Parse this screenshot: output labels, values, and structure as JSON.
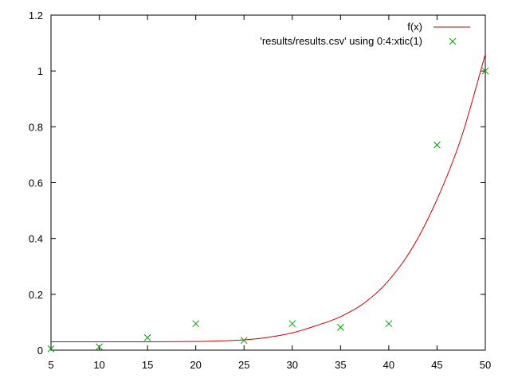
{
  "chart_data": {
    "type": "scatter",
    "title": "",
    "xlabel": "",
    "ylabel": "",
    "xlim": [
      5,
      50
    ],
    "ylim": [
      0,
      1.2
    ],
    "grid": false,
    "legend_position": "top-right",
    "x_ticks": [
      "5",
      "10",
      "15",
      "20",
      "25",
      "30",
      "35",
      "40",
      "45",
      "50"
    ],
    "y_ticks": [
      "0",
      "0.2",
      "0.4",
      "0.6",
      "0.8",
      "1",
      "1.2"
    ],
    "series": [
      {
        "name": "f(x)",
        "kind": "line",
        "color": "#cc0000",
        "x": [
          5,
          10,
          15,
          20,
          22.5,
          25,
          27.5,
          30,
          32.5,
          35,
          37.5,
          40,
          42.5,
          45,
          47.5,
          50
        ],
        "y": [
          0.03,
          0.03,
          0.03,
          0.031,
          0.033,
          0.037,
          0.046,
          0.062,
          0.088,
          0.12,
          0.17,
          0.25,
          0.37,
          0.54,
          0.76,
          1.06
        ]
      },
      {
        "name": "'results/results.csv' using 0:4:xtic(1)",
        "kind": "points",
        "marker": "x",
        "color": "#00a000",
        "x": [
          5,
          10,
          15,
          20,
          25,
          30,
          35,
          40,
          45,
          50
        ],
        "y": [
          0.005,
          0.012,
          0.045,
          0.095,
          0.035,
          0.095,
          0.082,
          0.095,
          0.735,
          1.0
        ]
      }
    ]
  }
}
